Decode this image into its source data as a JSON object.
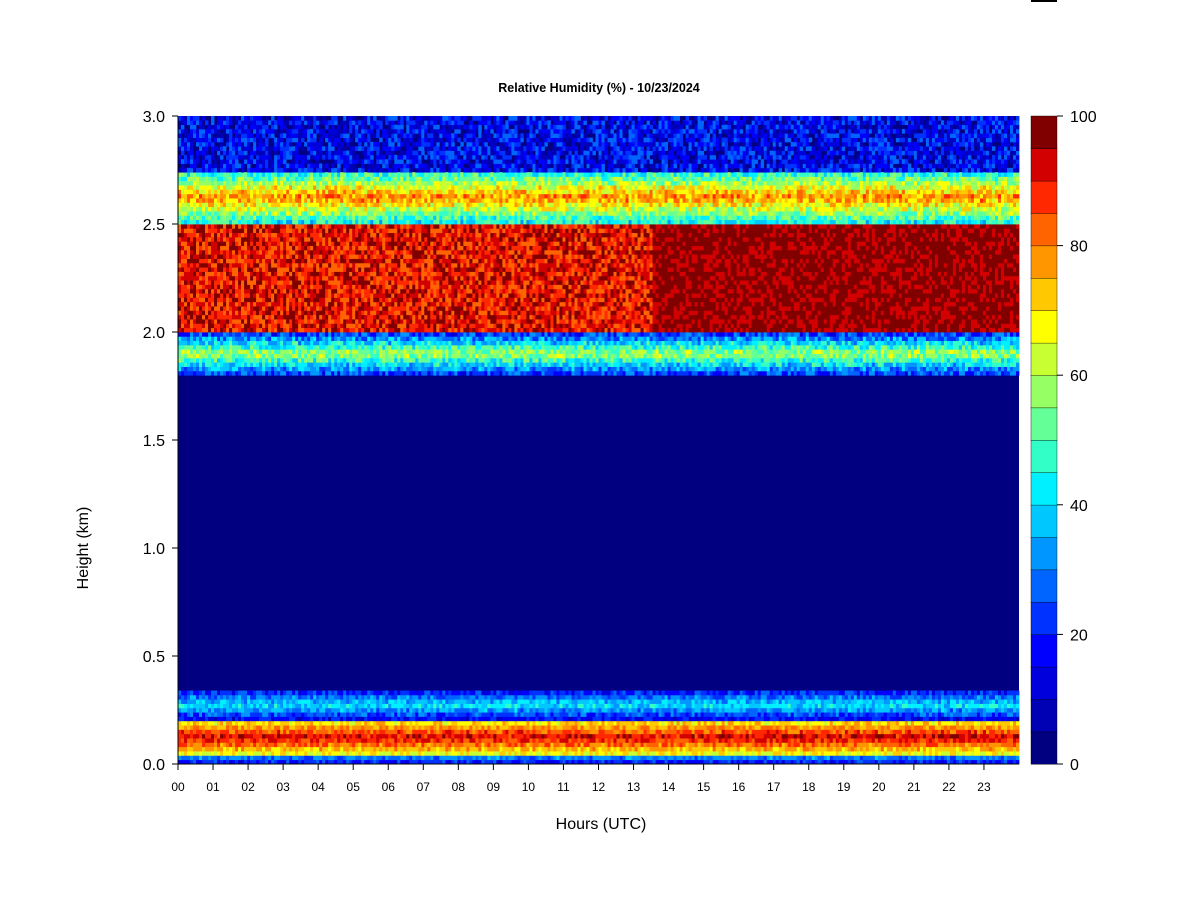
{
  "chart_data": {
    "type": "heatmap",
    "title": "Relative Humidity (%) - 10/23/2024",
    "xlabel": "Hours (UTC)",
    "ylabel": "Height (km)",
    "x_tick_labels": [
      "00",
      "01",
      "02",
      "03",
      "04",
      "05",
      "06",
      "07",
      "08",
      "09",
      "10",
      "11",
      "12",
      "13",
      "14",
      "15",
      "16",
      "17",
      "18",
      "19",
      "20",
      "21",
      "22",
      "23"
    ],
    "y_tick_labels": [
      "0.0",
      "0.5",
      "1.0",
      "1.5",
      "2.0",
      "2.5",
      "3.0"
    ],
    "xlim": [
      0,
      24
    ],
    "ylim": [
      0,
      3.0
    ],
    "colorbar": {
      "range": [
        0,
        100
      ],
      "tick_labels": [
        "0",
        "20",
        "40",
        "60",
        "80",
        "100"
      ],
      "levels": [
        0,
        5,
        10,
        15,
        20,
        25,
        30,
        35,
        40,
        45,
        50,
        55,
        60,
        65,
        70,
        75,
        80,
        85,
        90,
        95,
        100
      ],
      "colors": [
        "#000080",
        "#0000b4",
        "#0000dc",
        "#0000ff",
        "#0032ff",
        "#0064ff",
        "#0096ff",
        "#00c8ff",
        "#00f0ff",
        "#32ffc8",
        "#64ff96",
        "#96ff64",
        "#c8ff32",
        "#ffff00",
        "#ffc800",
        "#ff9600",
        "#ff6400",
        "#ff2800",
        "#d20000",
        "#800000"
      ]
    },
    "layers": [
      {
        "height_km": [
          0.0,
          0.05
        ],
        "rh_range": [
          5,
          40
        ]
      },
      {
        "height_km": [
          0.05,
          0.2
        ],
        "rh_range": [
          60,
          100
        ]
      },
      {
        "height_km": [
          0.2,
          0.35
        ],
        "rh_range": [
          5,
          50
        ]
      },
      {
        "height_km": [
          0.35,
          1.8
        ],
        "rh_range": [
          0,
          5
        ]
      },
      {
        "height_km": [
          1.8,
          2.0
        ],
        "rh_range": [
          10,
          70
        ]
      },
      {
        "height_km": [
          2.0,
          2.5
        ],
        "rh_range": [
          80,
          100
        ]
      },
      {
        "height_km": [
          2.5,
          2.75
        ],
        "rh_range": [
          30,
          90
        ]
      },
      {
        "height_km": [
          2.75,
          3.0
        ],
        "rh_range": [
          0,
          30
        ]
      }
    ]
  }
}
